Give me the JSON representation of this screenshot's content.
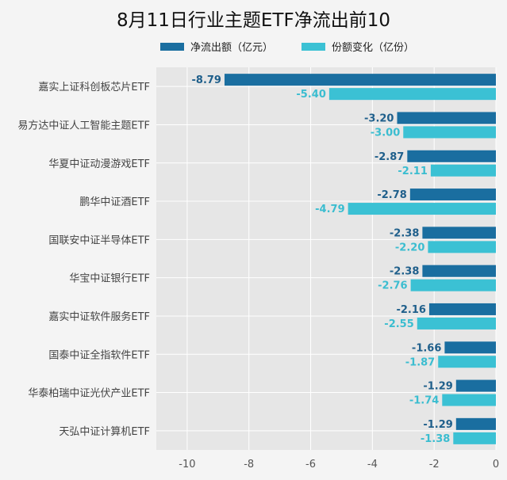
{
  "chart_data": {
    "type": "bar",
    "orientation": "horizontal",
    "title": "8月11日行业主题ETF净流出前10",
    "categories": [
      "嘉实上证科创板芯片ETF",
      "易方达中证人工智能主题ETF",
      "华夏中证动漫游戏ETF",
      "鹏华中证酒ETF",
      "国联安中证半导体ETF",
      "华宝中证银行ETF",
      "嘉实中证软件服务ETF",
      "国泰中证全指软件ETF",
      "华泰柏瑞中证光伏产业ETF",
      "天弘中证计算机ETF"
    ],
    "series": [
      {
        "name": "净流出额（亿元）",
        "color": "#1a6ea0",
        "label_color": "#1f5f8b",
        "values": [
          -8.79,
          -3.2,
          -2.87,
          -2.78,
          -2.38,
          -2.38,
          -2.16,
          -1.66,
          -1.29,
          -1.29
        ]
      },
      {
        "name": "份额变化（亿份）",
        "color": "#3bc1d4",
        "label_color": "#3bbdd0",
        "values": [
          -5.4,
          -3.0,
          -2.11,
          -4.79,
          -2.2,
          -2.76,
          -2.55,
          -1.87,
          -1.74,
          -1.38
        ]
      }
    ],
    "xlim": [
      -11,
      0
    ],
    "xticks": [
      -10,
      -8,
      -6,
      -4,
      -2,
      0
    ],
    "grid": true,
    "legend": "top",
    "plot_bg": "#e6e6e6"
  }
}
